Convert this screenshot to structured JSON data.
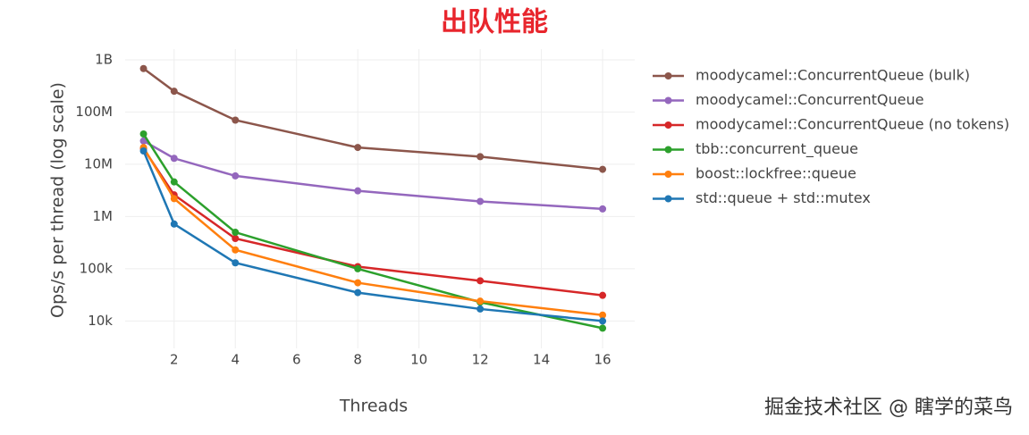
{
  "chart_data": {
    "type": "line",
    "title": "出队性能",
    "x_label": "Threads",
    "y_label": "Ops/s per thread (log scale)",
    "watermark": "掘金技术社区 @ 瞎学的菜鸟",
    "x": [
      1,
      2,
      4,
      8,
      12,
      16
    ],
    "series": [
      {
        "name": "moodycamel::ConcurrentQueue (bulk)",
        "color": "#8c564b",
        "values": [
          680000000,
          250000000,
          70000000,
          21000000,
          14000000,
          8000000
        ]
      },
      {
        "name": "moodycamel::ConcurrentQueue",
        "color": "#9467bd",
        "values": [
          28000000,
          13000000,
          6000000,
          3100000,
          1950000,
          1400000
        ]
      },
      {
        "name": "moodycamel::ConcurrentQueue (no tokens)",
        "color": "#d62728",
        "values": [
          20000000,
          2600000,
          380000,
          110000,
          59000,
          31000
        ]
      },
      {
        "name": "tbb::concurrent_queue",
        "color": "#2ca02c",
        "values": [
          38000000,
          4600000,
          500000,
          100000,
          23000,
          7300
        ]
      },
      {
        "name": "boost::lockfree::queue",
        "color": "#ff7f0e",
        "values": [
          21000000,
          2200000,
          230000,
          54000,
          24000,
          13000
        ]
      },
      {
        "name": "std::queue + std::mutex",
        "color": "#1f77b4",
        "values": [
          18000000,
          720000,
          130000,
          35000,
          17000,
          10000
        ]
      }
    ],
    "xlim": [
      0.4,
      17.05
    ],
    "xticks": [
      2,
      4,
      6,
      8,
      10,
      12,
      14,
      16
    ],
    "ylim": [
      3000,
      1600000000
    ],
    "ylog": true,
    "yticks": [
      {
        "value": 10000,
        "label": "10k"
      },
      {
        "value": 100000,
        "label": "100k"
      },
      {
        "value": 1000000,
        "label": "1M"
      },
      {
        "value": 10000000,
        "label": "10M"
      },
      {
        "value": 100000000,
        "label": "100M"
      },
      {
        "value": 1000000000,
        "label": "1B"
      }
    ],
    "grid": true,
    "legend": "right"
  }
}
